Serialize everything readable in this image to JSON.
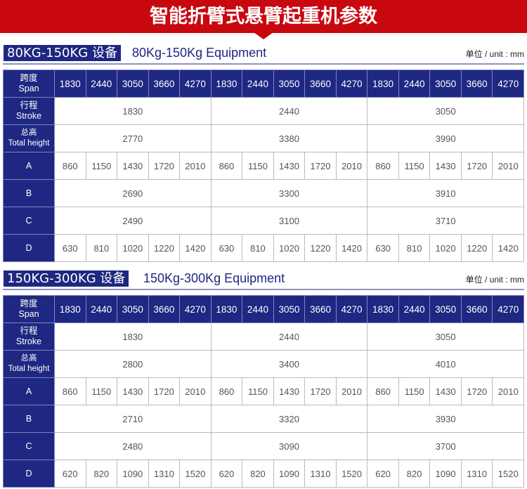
{
  "title": "智能折臂式悬臂起重机参数",
  "sections": [
    {
      "tag": "80KG-150KG 设备",
      "en": "80Kg-150Kg Equipment",
      "unit": "单位 / unit : mm",
      "labels": {
        "span": [
          "跨度",
          "Span"
        ],
        "stroke": [
          "行程",
          "Stroke"
        ],
        "total": [
          "总高",
          "Total height"
        ],
        "a": "A",
        "b": "B",
        "c": "C",
        "d": "D"
      },
      "span": [
        "1830",
        "2440",
        "3050",
        "3660",
        "4270",
        "1830",
        "2440",
        "3050",
        "3660",
        "4270",
        "1830",
        "2440",
        "3050",
        "3660",
        "4270"
      ],
      "stroke": [
        "1830",
        "2440",
        "3050"
      ],
      "total": [
        "2770",
        "3380",
        "3990"
      ],
      "a": [
        "860",
        "1150",
        "1430",
        "1720",
        "2010",
        "860",
        "1150",
        "1430",
        "1720",
        "2010",
        "860",
        "1150",
        "1430",
        "1720",
        "2010"
      ],
      "b": [
        "2690",
        "3300",
        "3910"
      ],
      "c": [
        "2490",
        "3100",
        "3710"
      ],
      "d": [
        "630",
        "810",
        "1020",
        "1220",
        "1420",
        "630",
        "810",
        "1020",
        "1220",
        "1420",
        "630",
        "810",
        "1020",
        "1220",
        "1420"
      ]
    },
    {
      "tag": "150KG-300KG 设备",
      "en": "150Kg-300Kg Equipment",
      "unit": "单位 / unit : mm",
      "labels": {
        "span": [
          "跨度",
          "Span"
        ],
        "stroke": [
          "行程",
          "Stroke"
        ],
        "total": [
          "总高",
          "Total height"
        ],
        "a": "A",
        "b": "B",
        "c": "C",
        "d": "D"
      },
      "span": [
        "1830",
        "2440",
        "3050",
        "3660",
        "4270",
        "1830",
        "2440",
        "3050",
        "3660",
        "4270",
        "1830",
        "2440",
        "3050",
        "3660",
        "4270"
      ],
      "stroke": [
        "1830",
        "2440",
        "3050"
      ],
      "total": [
        "2800",
        "3400",
        "4010"
      ],
      "a": [
        "860",
        "1150",
        "1430",
        "1720",
        "2010",
        "860",
        "1150",
        "1430",
        "1720",
        "2010",
        "860",
        "1150",
        "1430",
        "1720",
        "2010"
      ],
      "b": [
        "2710",
        "3320",
        "3930"
      ],
      "c": [
        "2480",
        "3090",
        "3700"
      ],
      "d": [
        "620",
        "820",
        "1090",
        "1310",
        "1520",
        "620",
        "820",
        "1090",
        "1310",
        "1520",
        "620",
        "820",
        "1090",
        "1310",
        "1520"
      ]
    }
  ],
  "colors": {
    "banner": "#c8070f",
    "navy": "#1e2781"
  }
}
